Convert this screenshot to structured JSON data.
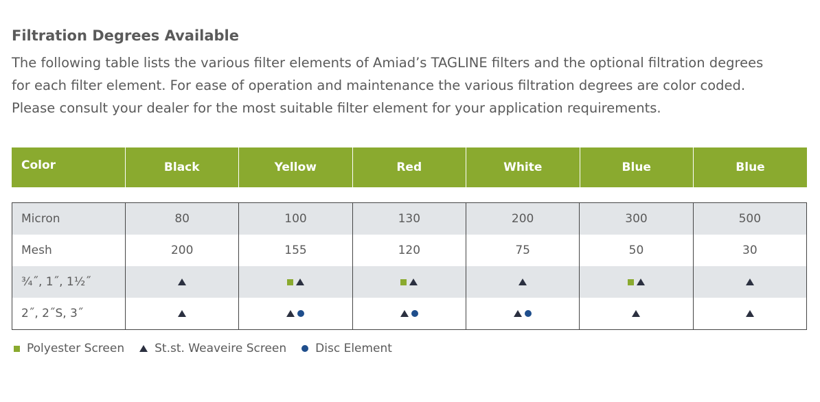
{
  "heading": "Filtration Degrees Available",
  "intro_lines": [
    "The following table lists the various filter elements of Amiad’s TAGLINE filters and the optional filtration degrees",
    "for each filter element. For ease of operation and maintenance the various filtration degrees are color coded.",
    "Please consult your dealer for the most suitable filter element for your application requirements."
  ],
  "table": {
    "header_label": "Color",
    "colors": [
      "Black",
      "Yellow",
      "Red",
      "White",
      "Blue",
      "Blue"
    ],
    "micron_label": "Micron",
    "micron": [
      "80",
      "100",
      "130",
      "200",
      "300",
      "500"
    ],
    "mesh_label": "Mesh",
    "mesh": [
      "200",
      "155",
      "120",
      "75",
      "50",
      "30"
    ],
    "size_row1_label": "¾˝, 1˝, 1½˝",
    "size_row1": [
      [
        "triangle"
      ],
      [
        "square",
        "triangle"
      ],
      [
        "square",
        "triangle"
      ],
      [
        "triangle"
      ],
      [
        "square",
        "triangle"
      ],
      [
        "triangle"
      ]
    ],
    "size_row2_label": "2˝, 2˝S, 3˝",
    "size_row2": [
      [
        "triangle"
      ],
      [
        "triangle",
        "dot"
      ],
      [
        "triangle",
        "dot"
      ],
      [
        "triangle",
        "dot"
      ],
      [
        "triangle"
      ],
      [
        "triangle"
      ]
    ]
  },
  "legend": {
    "polyester": "Polyester Screen",
    "weave": "St.st. Weaveire Screen",
    "disc": "Disc Element"
  },
  "colors": {
    "header_green": "#8aaa2f",
    "row_shade": "#e2e5e8",
    "triangle": "#2b3040",
    "dot": "#1f4e8c"
  }
}
